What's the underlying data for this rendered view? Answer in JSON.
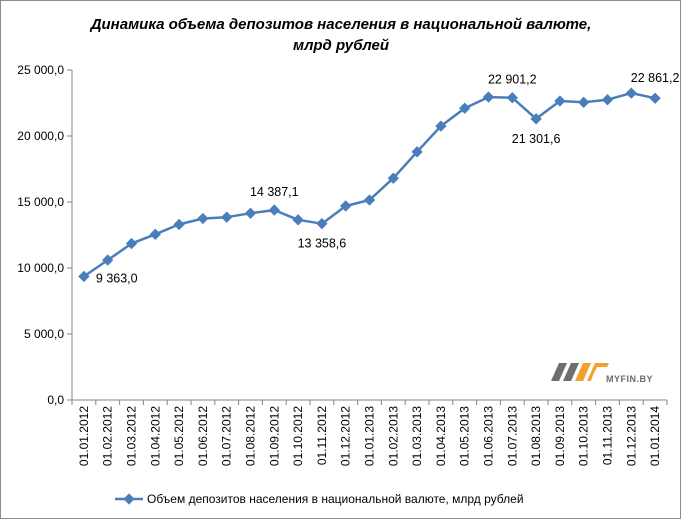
{
  "chart_data": {
    "type": "line",
    "title_lines": [
      "Динамика  объема  депозитов  населения  в национальной  валюте,",
      "млрд рублей"
    ],
    "categories": [
      "01.01.2012",
      "01.02.2012",
      "01.03.2012",
      "01.04.2012",
      "01.05.2012",
      "01.06.2012",
      "01.07.2012",
      "01.08.2012",
      "01.09.2012",
      "01.10.2012",
      "01.11.2012",
      "01.12.2012",
      "01.01.2013",
      "01.02.2013",
      "01.03.2013",
      "01.04.2013",
      "01.05.2013",
      "01.06.2013",
      "01.07.2013",
      "01.08.2013",
      "01.09.2013",
      "01.10.2013",
      "01.11.2013",
      "01.12.2013",
      "01.01.2014"
    ],
    "series": [
      {
        "name": "Объем депозитов населения в национальной валюте, млрд рублей",
        "color": "#4a7ebb",
        "values": [
          9363.0,
          10600,
          11850,
          12550,
          13300,
          13750,
          13850,
          14150,
          14387.1,
          13650,
          13358.6,
          14700,
          15150,
          16800,
          18800,
          20750,
          22100,
          22950,
          22901.2,
          21301.6,
          22650,
          22550,
          22750,
          23250,
          22861.2
        ]
      }
    ],
    "y_ticks": [
      "0,0",
      "5 000,0",
      "10 000,0",
      "15 000,0",
      "20 000,0",
      "25 000,0"
    ],
    "ylim": [
      0,
      25000
    ],
    "grid": false,
    "legend_position": "bottom",
    "data_labels": [
      {
        "index": 0,
        "text": "9 363,0",
        "position": "below-right"
      },
      {
        "index": 8,
        "text": "14 387,1",
        "position": "above"
      },
      {
        "index": 10,
        "text": "13 358,6",
        "position": "below"
      },
      {
        "index": 18,
        "text": "22 901,2",
        "position": "above"
      },
      {
        "index": 19,
        "text": "21 301,6",
        "position": "below"
      },
      {
        "index": 24,
        "text": "22 861,2",
        "position": "above-left"
      }
    ]
  },
  "watermark": {
    "text": "MYFIN.BY",
    "colors": {
      "gray": "#6e6e6e",
      "orange": "#f2a02c"
    }
  }
}
